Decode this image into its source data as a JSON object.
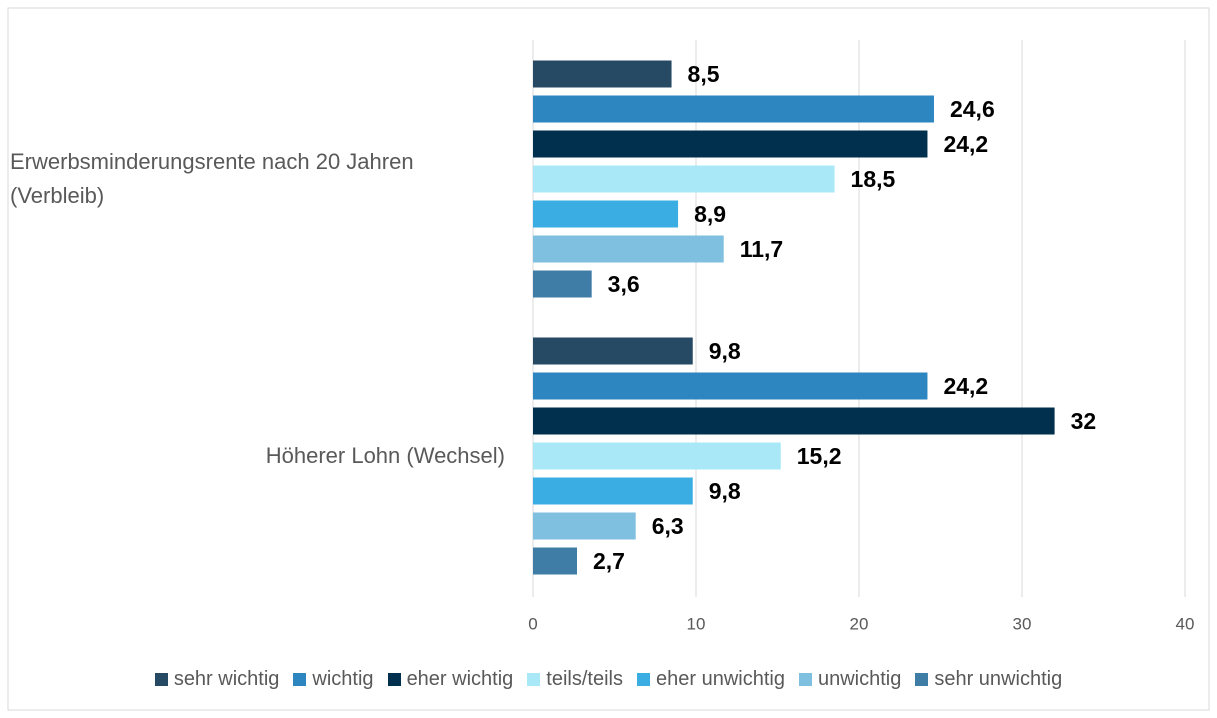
{
  "chart_data": {
    "type": "bar",
    "orientation": "horizontal",
    "categories": [
      "Erwerbsminderungsrente nach 20 Jahren (Verbleib)",
      "Höherer Lohn (Wechsel)"
    ],
    "series": [
      {
        "name": "sehr wichtig",
        "color": "#264a63",
        "values": [
          8.5,
          9.8
        ],
        "value_labels": [
          "8,5",
          "9,8"
        ]
      },
      {
        "name": "wichtig",
        "color": "#2e86c1",
        "values": [
          24.6,
          24.2
        ],
        "value_labels": [
          "24,6",
          "24,2"
        ]
      },
      {
        "name": "eher wichtig",
        "color": "#00304d",
        "values": [
          24.2,
          32
        ],
        "value_labels": [
          "24,2",
          "32"
        ]
      },
      {
        "name": "teils/teils",
        "color": "#a9e8f7",
        "values": [
          18.5,
          15.2
        ],
        "value_labels": [
          "18,5",
          "15,2"
        ]
      },
      {
        "name": "eher unwichtig",
        "color": "#3aaee2",
        "values": [
          8.9,
          9.8
        ],
        "value_labels": [
          "8,9",
          "9,8"
        ]
      },
      {
        "name": "unwichtig",
        "color": "#7fbfdf",
        "values": [
          11.7,
          6.3
        ],
        "value_labels": [
          "11,7",
          "6,3"
        ]
      },
      {
        "name": "sehr unwichtig",
        "color": "#3f7ca6",
        "values": [
          3.6,
          2.7
        ],
        "value_labels": [
          "3,6",
          "2,7"
        ]
      }
    ],
    "xlim": [
      0,
      40
    ],
    "xticks": [
      0,
      10,
      20,
      30,
      40
    ],
    "grid": true,
    "legend": "bottom"
  }
}
